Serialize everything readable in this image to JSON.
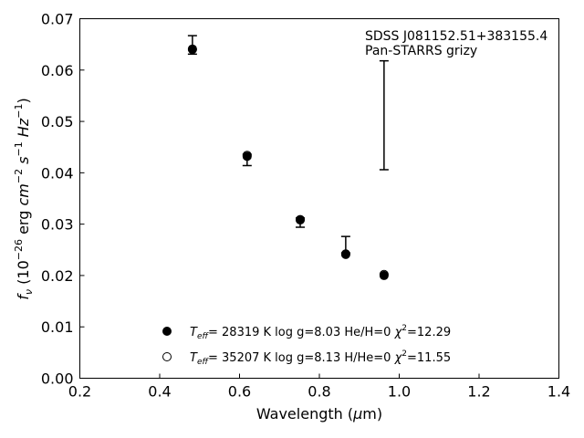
{
  "chart_data": {
    "type": "scatter",
    "xlabel_main": "Wavelength (",
    "xlabel_unit_mu": "μ",
    "xlabel_unit_rest": "m)",
    "ylabel": {
      "f": "f",
      "nu": "ν",
      "open": " (10",
      "exp1": "−26",
      "erg": " erg ",
      "cm": "cm",
      "exp2": "−2",
      "s": " s",
      "exp3": "−1",
      "hz": " Hz",
      "exp4": "−1",
      "close": ")"
    },
    "xlim": [
      0.2,
      1.4
    ],
    "ylim": [
      0.0,
      0.07
    ],
    "xticks": [
      "0.2",
      "0.4",
      "0.6",
      "0.8",
      "1.0",
      "1.2",
      "1.4"
    ],
    "xtick_values": [
      0.2,
      0.4,
      0.6,
      0.8,
      1.0,
      1.2,
      1.4
    ],
    "yticks": [
      "0.00",
      "0.01",
      "0.02",
      "0.03",
      "0.04",
      "0.05",
      "0.06",
      "0.07"
    ],
    "ytick_values": [
      0.0,
      0.01,
      0.02,
      0.03,
      0.04,
      0.05,
      0.06,
      0.07
    ],
    "grid": false,
    "annotation_lines": [
      "SDSS J081152.51+383155.4",
      "Pan-STARRS grizy"
    ],
    "observed": [
      {
        "x": 0.482,
        "y": 0.0649,
        "yerr": 0.0018
      },
      {
        "x": 0.619,
        "y": 0.0425,
        "yerr": 0.0011
      },
      {
        "x": 0.752,
        "y": 0.0303,
        "yerr": 0.0009
      },
      {
        "x": 0.866,
        "y": 0.026,
        "yerr": 0.0016
      },
      {
        "x": 0.962,
        "y": 0.0512,
        "yerr": 0.0106
      }
    ],
    "series": [
      {
        "marker": "filled",
        "x": [
          0.482,
          0.619,
          0.752,
          0.866,
          0.962
        ],
        "y": [
          0.064,
          0.0432,
          0.0308,
          0.0241,
          0.02
        ]
      },
      {
        "marker": "open",
        "x": [
          0.482,
          0.619,
          0.752,
          0.866,
          0.962
        ],
        "y": [
          0.0641,
          0.0434,
          0.0309,
          0.0242,
          0.0202
        ]
      }
    ],
    "legend": {
      "placement": "lower-center",
      "entries": [
        {
          "marker": "filled",
          "teff_T": "T",
          "teff_sub": "eff",
          "teff_val": "= 28319 K  log g=8.03  He/H=0  ",
          "chi": "χ",
          "chi_sup": "2",
          "chi_val": "=12.29"
        },
        {
          "marker": "open",
          "teff_T": "T",
          "teff_sub": "eff",
          "teff_val": "= 35207 K  log g=8.13  H/He=0  ",
          "chi": "χ",
          "chi_sup": "2",
          "chi_val": "=11.55"
        }
      ]
    }
  }
}
